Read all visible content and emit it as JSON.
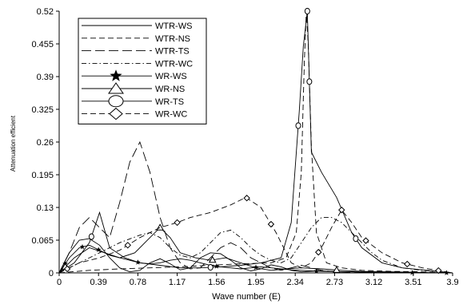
{
  "chart_data": {
    "type": "line",
    "xlabel": "Wave number (E)",
    "ylabel": "Attenuation efficient",
    "xlim": [
      0,
      3.9
    ],
    "ylim": [
      0,
      0.52
    ],
    "xticks": [
      "0",
      "0.39",
      "0.78",
      "1.17",
      "1.56",
      "1.95",
      "2.34",
      "2.73",
      "3.12",
      "3.51",
      "3.9"
    ],
    "yticks": [
      "0",
      "0.065",
      "0.13",
      "0.195",
      "0.26",
      "0.325",
      "0.39",
      "0.455",
      "0.52"
    ],
    "grid": false,
    "legend_position": "top-left",
    "series": [
      {
        "name": "WTR-WS",
        "style": "solid",
        "marker": "none",
        "x": [
          0,
          0.1,
          0.2,
          0.3,
          0.4,
          0.5,
          0.6,
          0.7,
          0.8,
          0.9,
          1.0,
          1.1,
          1.2,
          1.3,
          1.4,
          1.5,
          1.6,
          1.7,
          1.8,
          1.9,
          2.0,
          2.1,
          2.2,
          2.3,
          2.4,
          2.5,
          2.6,
          2.7,
          2.8,
          2.9,
          3.0,
          3.1,
          3.2,
          3.3,
          3.4,
          3.5,
          3.6,
          3.7,
          3.8,
          3.9
        ],
        "y": [
          0,
          0.04,
          0.065,
          0.068,
          0.055,
          0.03,
          0.01,
          0.002,
          0.005,
          0.02,
          0.028,
          0.018,
          0.006,
          0.01,
          0.03,
          0.04,
          0.038,
          0.025,
          0.01,
          0.004,
          0.008,
          0.016,
          0.012,
          0.005,
          0.002,
          0.003,
          0.004,
          0.003,
          0.002,
          0.002,
          0.001,
          0.001,
          0.001,
          0.001,
          0.0,
          0.0,
          0.0,
          0.0,
          0.0,
          0.0
        ]
      },
      {
        "name": "WTR-NS",
        "style": "dashed",
        "marker": "none",
        "x": [
          0,
          0.3,
          0.6,
          0.9,
          1.2,
          1.5,
          1.8,
          2.1,
          2.25,
          2.35,
          2.4,
          2.43,
          2.45,
          2.47,
          2.5,
          2.55,
          2.65,
          2.8,
          3.0,
          3.3,
          3.6,
          3.9
        ],
        "y": [
          0,
          0.005,
          0.008,
          0.01,
          0.012,
          0.015,
          0.018,
          0.02,
          0.03,
          0.08,
          0.2,
          0.42,
          0.52,
          0.45,
          0.25,
          0.08,
          0.02,
          0.01,
          0.005,
          0.003,
          0.002,
          0.0
        ]
      },
      {
        "name": "WTR-TS",
        "style": "longdash",
        "marker": "none",
        "x": [
          0,
          0.1,
          0.2,
          0.3,
          0.4,
          0.5,
          0.6,
          0.7,
          0.8,
          0.9,
          1.0,
          1.1,
          1.2,
          1.3,
          1.4,
          1.5,
          1.6,
          1.7,
          1.8,
          1.9,
          2.0,
          2.1,
          2.2,
          2.3,
          2.4,
          2.5,
          2.6,
          2.7,
          2.8,
          2.9,
          3.0,
          3.2,
          3.4,
          3.6,
          3.9
        ],
        "y": [
          0,
          0.04,
          0.09,
          0.11,
          0.09,
          0.07,
          0.14,
          0.22,
          0.26,
          0.2,
          0.11,
          0.05,
          0.02,
          0.008,
          0.01,
          0.03,
          0.05,
          0.06,
          0.05,
          0.03,
          0.02,
          0.01,
          0.005,
          0.01,
          0.015,
          0.01,
          0.005,
          0.003,
          0.002,
          0.001,
          0.0,
          0.0,
          0.0,
          0.0,
          0.0
        ]
      },
      {
        "name": "WTR-WC",
        "style": "dashdot",
        "marker": "none",
        "x": [
          0,
          0.2,
          0.4,
          0.6,
          0.8,
          0.9,
          1.0,
          1.1,
          1.2,
          1.3,
          1.4,
          1.5,
          1.6,
          1.7,
          1.8,
          1.9,
          2.0,
          2.1,
          2.2,
          2.3,
          2.4,
          2.5,
          2.6,
          2.7,
          2.8,
          2.9,
          3.0,
          3.1,
          3.2,
          3.4,
          3.6,
          3.9
        ],
        "y": [
          0,
          0.02,
          0.04,
          0.06,
          0.075,
          0.08,
          0.07,
          0.05,
          0.035,
          0.03,
          0.04,
          0.06,
          0.08,
          0.085,
          0.07,
          0.05,
          0.035,
          0.025,
          0.02,
          0.03,
          0.06,
          0.09,
          0.11,
          0.11,
          0.1,
          0.08,
          0.06,
          0.04,
          0.025,
          0.01,
          0.005,
          0.0
        ]
      },
      {
        "name": "WR-WS",
        "style": "solid",
        "marker": "star",
        "x": [
          0,
          0.1,
          0.2,
          0.3,
          0.4,
          0.5,
          0.6,
          0.7,
          0.8,
          0.9,
          1.0,
          1.1,
          1.2,
          1.3,
          1.4,
          1.5,
          1.6,
          1.7,
          1.8,
          1.9,
          2.0,
          2.1,
          2.2,
          2.3,
          2.4,
          2.5,
          2.6,
          2.8,
          3.0,
          3.2,
          3.4,
          3.6,
          3.9
        ],
        "y": [
          0,
          0.03,
          0.05,
          0.055,
          0.045,
          0.035,
          0.03,
          0.025,
          0.02,
          0.018,
          0.02,
          0.025,
          0.028,
          0.025,
          0.02,
          0.015,
          0.012,
          0.01,
          0.008,
          0.01,
          0.012,
          0.01,
          0.008,
          0.006,
          0.005,
          0.004,
          0.003,
          0.002,
          0.002,
          0.001,
          0.001,
          0.0,
          0.0
        ],
        "markers_x": [
          0.06,
          0.23,
          0.39,
          0.78,
          1.56,
          1.95,
          2.55,
          3.5,
          3.84
        ]
      },
      {
        "name": "WR-NS",
        "style": "solid",
        "marker": "triangle",
        "x": [
          0,
          0.15,
          0.3,
          0.45,
          0.6,
          0.75,
          0.9,
          1.0,
          1.1,
          1.2,
          1.35,
          1.5,
          1.65,
          1.8,
          1.95,
          2.1,
          2.25,
          2.4,
          2.6,
          2.8,
          3.0,
          3.3,
          3.6,
          3.9
        ],
        "y": [
          0,
          0.03,
          0.05,
          0.04,
          0.03,
          0.04,
          0.07,
          0.09,
          0.07,
          0.04,
          0.03,
          0.025,
          0.03,
          0.02,
          0.01,
          0.005,
          0.008,
          0.01,
          0.008,
          0.005,
          0.003,
          0.002,
          0.001,
          0.0
        ],
        "markers_x": [
          0.06,
          1.0,
          1.52,
          2.75
        ]
      },
      {
        "name": "WR-TS",
        "style": "solid",
        "marker": "circle",
        "x": [
          0,
          0.15,
          0.3,
          0.4,
          0.5,
          0.65,
          0.8,
          1.0,
          1.2,
          1.4,
          1.6,
          1.8,
          2.0,
          2.2,
          2.3,
          2.38,
          2.42,
          2.46,
          2.5,
          2.6,
          2.75,
          2.9,
          3.0,
          3.2,
          3.4,
          3.9
        ],
        "y": [
          0,
          0.02,
          0.06,
          0.12,
          0.05,
          0.03,
          0.02,
          0.015,
          0.01,
          0.01,
          0.012,
          0.015,
          0.02,
          0.03,
          0.1,
          0.32,
          0.45,
          0.52,
          0.24,
          0.2,
          0.15,
          0.08,
          0.05,
          0.02,
          0.01,
          0.0
        ],
        "markers_x": [
          0.32,
          1.5,
          2.37,
          2.46,
          2.48,
          2.94
        ]
      },
      {
        "name": "WR-WC",
        "style": "dashed",
        "marker": "diamond",
        "x": [
          0,
          0.2,
          0.4,
          0.6,
          0.8,
          1.0,
          1.17,
          1.3,
          1.5,
          1.7,
          1.85,
          2.0,
          2.15,
          2.3,
          2.4,
          2.5,
          2.6,
          2.7,
          2.8,
          2.9,
          3.0,
          3.2,
          3.4,
          3.6,
          3.9
        ],
        "y": [
          0,
          0.02,
          0.03,
          0.045,
          0.07,
          0.09,
          0.1,
          0.11,
          0.12,
          0.135,
          0.15,
          0.13,
          0.08,
          0.02,
          0.01,
          0.02,
          0.05,
          0.09,
          0.125,
          0.1,
          0.07,
          0.04,
          0.02,
          0.01,
          0.0
        ],
        "markers_x": [
          0.08,
          0.68,
          1.17,
          1.86,
          2.1,
          2.57,
          2.8,
          3.04,
          3.45,
          3.76
        ]
      }
    ]
  }
}
